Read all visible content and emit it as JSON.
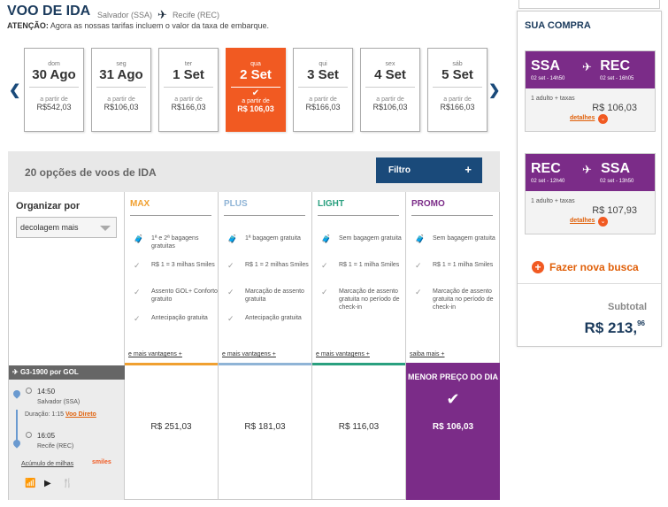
{
  "header": {
    "title": "VOO DE IDA",
    "origin": "Salvador (SSA)",
    "destination": "Recife (REC)",
    "notice_label": "ATENÇÃO:",
    "notice_text": "Agora as nossas tarifas incluem o valor da taxa de embarque."
  },
  "dates": [
    {
      "dow": "dom",
      "day": "30 Ago",
      "prefix": "a partir de",
      "price": "R$542,03",
      "selected": false
    },
    {
      "dow": "seg",
      "day": "31 Ago",
      "prefix": "a partir de",
      "price": "R$106,03",
      "selected": false
    },
    {
      "dow": "ter",
      "day": "1 Set",
      "prefix": "a partir de",
      "price": "R$166,03",
      "selected": false
    },
    {
      "dow": "qua",
      "day": "2 Set",
      "prefix": "a partir de",
      "price": "R$ 106,03",
      "selected": true
    },
    {
      "dow": "qui",
      "day": "3 Set",
      "prefix": "a partir de",
      "price": "R$166,03",
      "selected": false
    },
    {
      "dow": "sex",
      "day": "4 Set",
      "prefix": "a partir de",
      "price": "R$106,03",
      "selected": false
    },
    {
      "dow": "sáb",
      "day": "5 Set",
      "prefix": "a partir de",
      "price": "R$166,03",
      "selected": false
    }
  ],
  "options": {
    "count_text": "20 opções de voos de IDA",
    "filter_label": "Filtro",
    "filter_plus": "+"
  },
  "organize": {
    "label": "Organizar por",
    "selected": "decolagem mais"
  },
  "fares": [
    {
      "name": "MAX",
      "color": "#f0a030",
      "benefits": [
        "1ª e 2ª bagagens gratuitas",
        "R$ 1 = 3 milhas Smiles",
        "Assento GOL+ Conforto gratuito",
        "Antecipação gratuita"
      ],
      "more": "e mais vantagens +",
      "price": "R$ 251,03"
    },
    {
      "name": "PLUS",
      "color": "#8fb4d6",
      "benefits": [
        "1ª bagagem gratuita",
        "R$ 1 = 2 milhas Smiles",
        "Marcação de assento gratuita",
        "Antecipação gratuita"
      ],
      "more": "e mais vantagens +",
      "price": "R$ 181,03"
    },
    {
      "name": "LIGHT",
      "color": "#2aa07f",
      "benefits": [
        "Sem bagagem gratuita",
        "R$ 1 = 1 milha Smiles",
        "Marcação de assento gratuita no período de check-in"
      ],
      "more": "e mais vantagens +",
      "price": "R$ 116,03"
    },
    {
      "name": "PROMO",
      "color": "#7b2c88",
      "benefits": [
        "Sem bagagem gratuita",
        "R$ 1 = 1 milha Smiles",
        "Marcação de assento gratuita no período de check-in"
      ],
      "more": "saiba mais +",
      "price": "R$ 106,03",
      "badge": "MENOR  PREÇO DO DIA"
    }
  ],
  "flight": {
    "code": "G3-1900 por  GOL",
    "dep_time": "14:50",
    "dep_city": "Salvador (SSA)",
    "duration_label": "Duração:",
    "duration": "1:15",
    "direct": "Voo Direto",
    "arr_time": "16:05",
    "arr_city": "Recife (REC)",
    "miles_link": "Acúmulo de milhas",
    "smiles": "smiles"
  },
  "sidebar": {
    "title": "SUA COMPRA",
    "trips": [
      {
        "from": "SSA",
        "to": "REC",
        "from_time": "02 set - 14h50",
        "to_time": "02 set - 16h05",
        "pax": "1 adulto + taxas",
        "price": "R$ 106,03",
        "details": "detalhes"
      },
      {
        "from": "REC",
        "to": "SSA",
        "from_time": "02 set - 12h40",
        "to_time": "02 set - 13h50",
        "pax": "1 adulto + taxas",
        "price": "R$ 107,93",
        "details": "detalhes"
      }
    ],
    "new_search": "Fazer nova busca",
    "subtotal_label": "Subtotal",
    "subtotal_main": "R$ 213,",
    "subtotal_cents": "96"
  }
}
